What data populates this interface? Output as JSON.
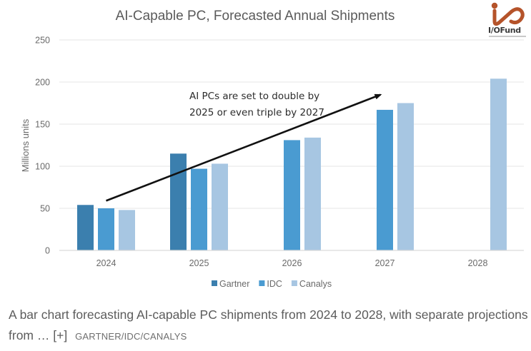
{
  "chart_data": {
    "type": "bar",
    "title": "AI-Capable PC, Forecasted Annual Shipments",
    "xlabel": "",
    "ylabel": "Millions units",
    "ylim": [
      0,
      250
    ],
    "yticks": [
      0,
      50,
      100,
      150,
      200,
      250
    ],
    "ytick_labels": [
      "0",
      "50",
      "100",
      "150",
      "200",
      "250"
    ],
    "grid": true,
    "categories": [
      "2024",
      "2025",
      "2026",
      "2027",
      "2028"
    ],
    "series": [
      {
        "name": "Gartner",
        "color": "#3b7fae",
        "values": [
          54,
          115,
          null,
          null,
          null
        ]
      },
      {
        "name": "IDC",
        "color": "#4a9bd1",
        "values": [
          50,
          97,
          131,
          167,
          null
        ]
      },
      {
        "name": "Canalys",
        "color": "#a7c6e2",
        "values": [
          48,
          103,
          134,
          175,
          204
        ]
      }
    ],
    "legend": {
      "position": "bottom",
      "entries": [
        "Gartner",
        "IDC",
        "Canalys"
      ]
    },
    "annotation": {
      "lines": [
        "AI PCs are set to double by",
        "2025 or even triple by 2027"
      ],
      "arrow": {
        "from": {
          "x": "2024",
          "y": 59
        },
        "to": {
          "x": "2027",
          "y": 185
        }
      }
    }
  },
  "logo": {
    "name": "I/OFund",
    "color": "#b5532a"
  },
  "caption": {
    "text": "A bar chart forecasting AI-capable PC shipments from 2024 to 2028, with separate projections from …",
    "expand_label": "[+]",
    "credit": "GARTNER/IDC/CANALYS"
  }
}
